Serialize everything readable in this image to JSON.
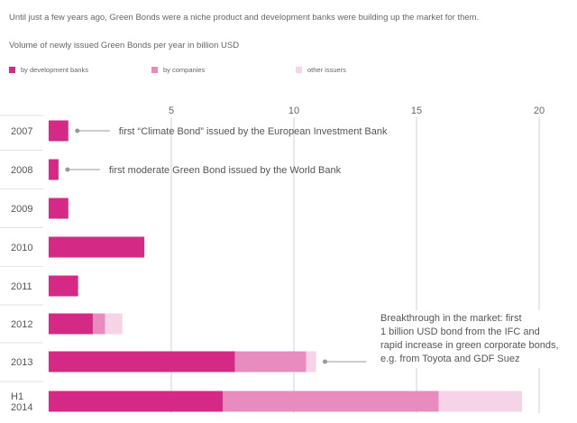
{
  "intro": "Until just a few years ago, Green Bonds were a niche product and development banks were building up the market for them.",
  "subtitle": "Volume of newly issued Green Bonds per year in billion USD",
  "legend": [
    {
      "label": "by development banks",
      "color": "#d42a85"
    },
    {
      "label": "by companies",
      "color": "#e88cbf"
    },
    {
      "label": "other issuers",
      "color": "#f6d3e6"
    }
  ],
  "chart_data": {
    "type": "bar",
    "orientation": "horizontal",
    "stacked": true,
    "title": "Volume of newly issued Green Bonds per year in billion USD",
    "xlim": [
      0,
      20
    ],
    "xticks": [
      5,
      10,
      15,
      20
    ],
    "gridlines": true,
    "categories": [
      "2007",
      "2008",
      "2009",
      "2010",
      "2011",
      "2012",
      "2013",
      "H1 2014"
    ],
    "category_display": [
      [
        "2007"
      ],
      [
        "2008"
      ],
      [
        "2009"
      ],
      [
        "2010"
      ],
      [
        "2011"
      ],
      [
        "2012"
      ],
      [
        "2013"
      ],
      [
        "H1",
        "2014"
      ]
    ],
    "series": [
      {
        "name": "by development banks",
        "color": "#d42a85",
        "values": [
          0.8,
          0.4,
          0.8,
          3.9,
          1.2,
          1.8,
          7.6,
          7.1
        ]
      },
      {
        "name": "by companies",
        "color": "#e88cbf",
        "values": [
          0,
          0,
          0,
          0,
          0,
          0.5,
          2.9,
          8.8
        ]
      },
      {
        "name": "other issuers",
        "color": "#f6d3e6",
        "values": [
          0,
          0,
          0,
          0,
          0,
          0.7,
          0.4,
          3.4
        ]
      }
    ],
    "annotations": [
      {
        "category": "2007",
        "lines": [
          "first “Climate Bond” issued by the European Investment Bank"
        ]
      },
      {
        "category": "2008",
        "lines": [
          "first moderate Green Bond issued by the World Bank"
        ]
      },
      {
        "category": "2013",
        "lines": [
          "Breakthrough in the market: first",
          "1 billion USD bond from the IFC and",
          "rapid increase in green corporate bonds,",
          "e.g. from Toyota and GDF Suez"
        ]
      }
    ]
  }
}
